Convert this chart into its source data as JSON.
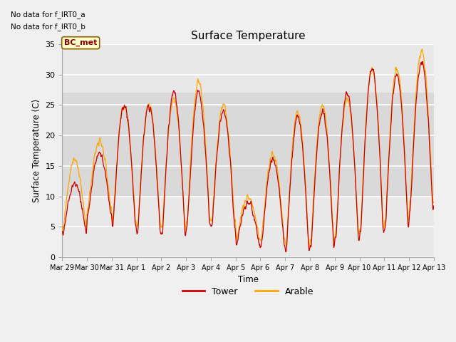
{
  "title": "Surface Temperature",
  "xlabel": "Time",
  "ylabel": "Surface Temperature (C)",
  "ylim": [
    0,
    35
  ],
  "text_no_data_1": "No data for f_IRT0_a",
  "text_no_data_2": "No data for f_IRT0_b",
  "legend_label_box": "BC_met",
  "legend_tower": "Tower",
  "legend_arable": "Arable",
  "tower_color": "#cc0000",
  "arable_color": "#ffa500",
  "fig_bg": "#f0f0f0",
  "plot_bg": "#e8e8e8",
  "shaded_band_y1": 10,
  "shaded_band_y2": 27,
  "xtick_labels": [
    "Mar 29",
    "Mar 30",
    "Mar 31",
    "Apr 1",
    "Apr 2",
    "Apr 3",
    "Apr 4",
    "Apr 5",
    "Apr 6",
    "Apr 7",
    "Apr 8",
    "Apr 9",
    "Apr 10",
    "Apr 11",
    "Apr 12",
    "Apr 13"
  ],
  "xtick_positions": [
    0,
    1,
    2,
    3,
    4,
    5,
    6,
    7,
    8,
    9,
    10,
    11,
    12,
    13,
    14,
    15
  ],
  "ytick_positions": [
    0,
    5,
    10,
    15,
    20,
    25,
    30,
    35
  ],
  "days": 15,
  "pts_per_day": 96,
  "day_params_tower": [
    [
      4,
      12
    ],
    [
      7,
      17
    ],
    [
      5,
      25
    ],
    [
      4,
      25
    ],
    [
      4,
      27
    ],
    [
      5,
      27
    ],
    [
      5,
      24
    ],
    [
      2,
      9
    ],
    [
      2,
      16
    ],
    [
      1,
      23
    ],
    [
      2,
      24
    ],
    [
      3,
      27
    ],
    [
      4,
      31
    ],
    [
      5,
      30
    ],
    [
      8,
      32
    ]
  ],
  "day_params_arable": [
    [
      5,
      16
    ],
    [
      8,
      19
    ],
    [
      6,
      25
    ],
    [
      5,
      25
    ],
    [
      5,
      26
    ],
    [
      6,
      29
    ],
    [
      6,
      25
    ],
    [
      3,
      10
    ],
    [
      3,
      17
    ],
    [
      2,
      24
    ],
    [
      3,
      25
    ],
    [
      4,
      26
    ],
    [
      5,
      31
    ],
    [
      6,
      31
    ],
    [
      9,
      34
    ]
  ]
}
